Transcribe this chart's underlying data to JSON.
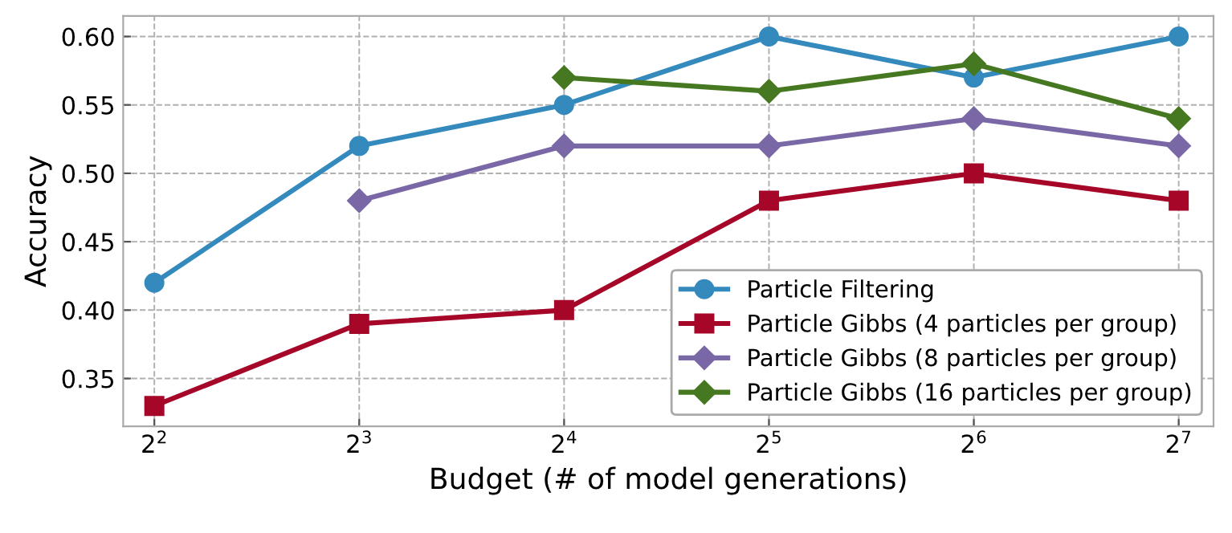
{
  "chart_data": {
    "type": "line",
    "xlabel": "Budget (# of model generations)",
    "ylabel": "Accuracy",
    "log": "x",
    "xlim": [
      3.6,
      144
    ],
    "ylim": [
      0.315,
      0.615
    ],
    "xticks": [
      {
        "value": 4,
        "label": "2$^{2}$"
      },
      {
        "value": 8,
        "label": "2$^{3}$"
      },
      {
        "value": 16,
        "label": "2$^{4}$"
      },
      {
        "value": 32,
        "label": "2$^{5}$"
      },
      {
        "value": 64,
        "label": "2$^{6}$"
      },
      {
        "value": 128,
        "label": "2$^{7}$"
      }
    ],
    "yticks": [
      {
        "value": 0.35,
        "label": "0.35"
      },
      {
        "value": 0.4,
        "label": "0.40"
      },
      {
        "value": 0.45,
        "label": "0.45"
      },
      {
        "value": 0.5,
        "label": "0.50"
      },
      {
        "value": 0.55,
        "label": "0.55"
      },
      {
        "value": 0.6,
        "label": "0.60"
      }
    ],
    "grid": true,
    "line_style": "solid",
    "legend": "bottom right",
    "series": [
      {
        "name": "Particle Filtering",
        "color": "#348abd",
        "marker": "circle",
        "x": [
          4,
          8,
          16,
          32,
          64,
          128
        ],
        "values": [
          0.42,
          0.52,
          0.55,
          0.6,
          0.57,
          0.6
        ]
      },
      {
        "name": "Particle Gibbs (4 particles per group)",
        "color": "#a60628",
        "marker": "square",
        "x": [
          4,
          8,
          16,
          32,
          64,
          128
        ],
        "values": [
          0.33,
          0.39,
          0.4,
          0.48,
          0.5,
          0.48
        ]
      },
      {
        "name": "Particle Gibbs (8 particles per group)",
        "color": "#7a68a6",
        "marker": "diamond",
        "x": [
          8,
          16,
          32,
          64,
          128
        ],
        "values": [
          0.48,
          0.52,
          0.52,
          0.54,
          0.52
        ]
      },
      {
        "name": "Particle Gibbs (16 particles per group)",
        "color": "#467821",
        "marker": "diamond",
        "x": [
          16,
          32,
          64,
          128
        ],
        "values": [
          0.57,
          0.56,
          0.58,
          0.54
        ]
      }
    ]
  }
}
